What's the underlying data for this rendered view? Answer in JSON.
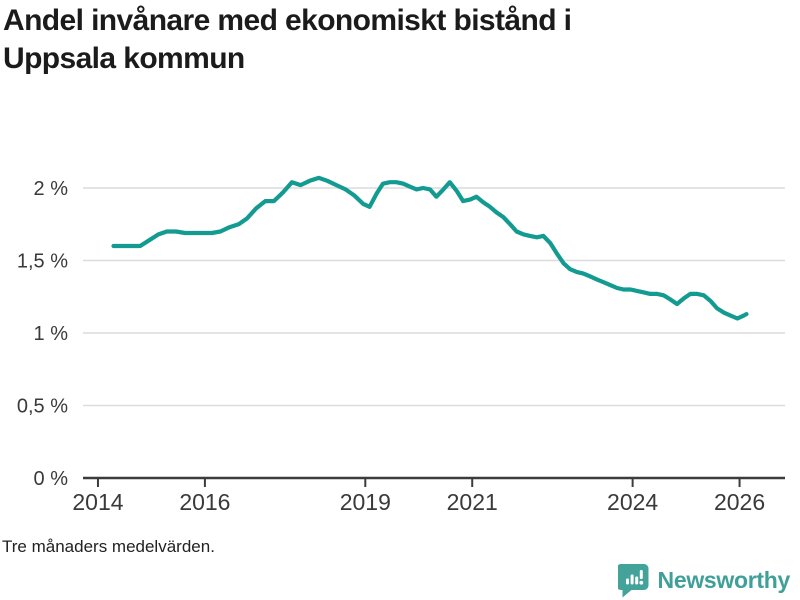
{
  "header": {
    "title_line1": "Andel invånare med ekonomiskt bistånd i",
    "title_line2": "Uppsala kommun"
  },
  "footnote": "Tre månaders medelvärden.",
  "branding": {
    "logo_text": "Newsworthy",
    "logo_icon": "bar-chart-speech-bubble-icon",
    "logo_color": "#43a39b"
  },
  "colors": {
    "line": "#149b91",
    "grid": "#dcdcdc",
    "axis": "#3c3c3c",
    "tick_label": "#3a3a3a",
    "title_text": "#1b1b1b"
  },
  "chart_data": {
    "type": "line",
    "title": "Andel invånare med ekonomiskt bistånd i Uppsala kommun",
    "subtitle": "",
    "xlabel": "",
    "ylabel": "",
    "unit": "%",
    "grid": "horizontal",
    "legend": "none",
    "xlim": [
      2013.72,
      2026.85
    ],
    "ylim": [
      0,
      2.16
    ],
    "x_ticks": [
      {
        "value": 2014,
        "label": "2014"
      },
      {
        "value": 2016,
        "label": "2016"
      },
      {
        "value": 2019,
        "label": "2019"
      },
      {
        "value": 2021,
        "label": "2021"
      },
      {
        "value": 2024,
        "label": "2024"
      },
      {
        "value": 2026,
        "label": "2026"
      }
    ],
    "y_ticks": [
      {
        "value": 0,
        "label": "0 %"
      },
      {
        "value": 0.5,
        "label": "0,5 %"
      },
      {
        "value": 1,
        "label": "1 %"
      },
      {
        "value": 1.5,
        "label": "1,5 %"
      },
      {
        "value": 2,
        "label": "2 %"
      }
    ],
    "series": [
      {
        "name": "Andel invånare med ekonomiskt bistånd, Uppsala kommun",
        "color": "#149b91",
        "points": [
          [
            2014.29,
            1.6
          ],
          [
            2014.46,
            1.6
          ],
          [
            2014.63,
            1.6
          ],
          [
            2014.79,
            1.6
          ],
          [
            2014.96,
            1.64
          ],
          [
            2015.13,
            1.68
          ],
          [
            2015.29,
            1.7
          ],
          [
            2015.46,
            1.7
          ],
          [
            2015.63,
            1.69
          ],
          [
            2015.79,
            1.69
          ],
          [
            2015.96,
            1.69
          ],
          [
            2016.13,
            1.69
          ],
          [
            2016.29,
            1.7
          ],
          [
            2016.46,
            1.73
          ],
          [
            2016.63,
            1.75
          ],
          [
            2016.79,
            1.79
          ],
          [
            2016.96,
            1.86
          ],
          [
            2017.13,
            1.91
          ],
          [
            2017.29,
            1.91
          ],
          [
            2017.46,
            1.97
          ],
          [
            2017.63,
            2.04
          ],
          [
            2017.79,
            2.02
          ],
          [
            2017.96,
            2.05
          ],
          [
            2018.13,
            2.07
          ],
          [
            2018.29,
            2.05
          ],
          [
            2018.46,
            2.02
          ],
          [
            2018.63,
            1.99
          ],
          [
            2018.79,
            1.95
          ],
          [
            2018.96,
            1.89
          ],
          [
            2019.08,
            1.87
          ],
          [
            2019.21,
            1.96
          ],
          [
            2019.33,
            2.03
          ],
          [
            2019.46,
            2.04
          ],
          [
            2019.58,
            2.04
          ],
          [
            2019.71,
            2.03
          ],
          [
            2019.83,
            2.01
          ],
          [
            2019.96,
            1.99
          ],
          [
            2020.08,
            2.0
          ],
          [
            2020.21,
            1.99
          ],
          [
            2020.33,
            1.94
          ],
          [
            2020.46,
            1.99
          ],
          [
            2020.58,
            2.04
          ],
          [
            2020.71,
            1.98
          ],
          [
            2020.83,
            1.91
          ],
          [
            2020.96,
            1.92
          ],
          [
            2021.08,
            1.94
          ],
          [
            2021.21,
            1.9
          ],
          [
            2021.33,
            1.87
          ],
          [
            2021.46,
            1.83
          ],
          [
            2021.58,
            1.8
          ],
          [
            2021.71,
            1.75
          ],
          [
            2021.83,
            1.7
          ],
          [
            2021.96,
            1.68
          ],
          [
            2022.08,
            1.67
          ],
          [
            2022.21,
            1.66
          ],
          [
            2022.33,
            1.67
          ],
          [
            2022.46,
            1.62
          ],
          [
            2022.58,
            1.55
          ],
          [
            2022.71,
            1.48
          ],
          [
            2022.83,
            1.44
          ],
          [
            2022.96,
            1.42
          ],
          [
            2023.08,
            1.41
          ],
          [
            2023.21,
            1.39
          ],
          [
            2023.33,
            1.37
          ],
          [
            2023.46,
            1.35
          ],
          [
            2023.58,
            1.33
          ],
          [
            2023.71,
            1.31
          ],
          [
            2023.83,
            1.3
          ],
          [
            2023.96,
            1.3
          ],
          [
            2024.08,
            1.29
          ],
          [
            2024.21,
            1.28
          ],
          [
            2024.33,
            1.27
          ],
          [
            2024.46,
            1.27
          ],
          [
            2024.58,
            1.26
          ],
          [
            2024.71,
            1.23
          ],
          [
            2024.83,
            1.2
          ],
          [
            2024.96,
            1.24
          ],
          [
            2025.08,
            1.27
          ],
          [
            2025.21,
            1.27
          ],
          [
            2025.33,
            1.26
          ],
          [
            2025.46,
            1.22
          ],
          [
            2025.58,
            1.17
          ],
          [
            2025.71,
            1.14
          ],
          [
            2025.83,
            1.12
          ],
          [
            2025.96,
            1.1
          ],
          [
            2026.08,
            1.12
          ],
          [
            2026.13,
            1.13
          ]
        ]
      }
    ]
  }
}
